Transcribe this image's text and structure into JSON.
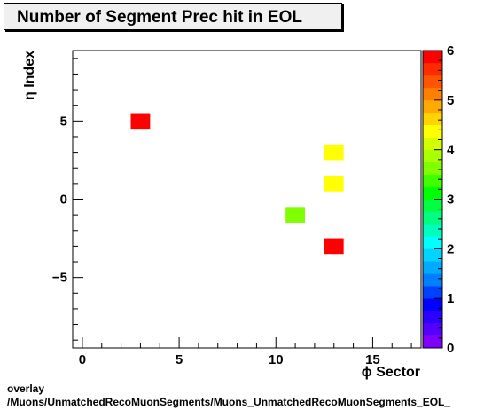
{
  "title": "Number of Segment Prec hit in EOL",
  "footer": {
    "line1": "overlay",
    "line2": "/Muons/UnmatchedRecoMuonSegments/Muons_UnmatchedRecoMuonSegments_EOL_"
  },
  "chart_data": {
    "type": "heatmap",
    "title": "Number of Segment Prec hit in EOL",
    "xlabel": "ϕ Sector",
    "ylabel": "η Index",
    "xlim": [
      -0.5,
      17.5
    ],
    "ylim": [
      -9.5,
      9.5
    ],
    "xticks": [
      0,
      5,
      10,
      15
    ],
    "yticks": [
      -5,
      0,
      5
    ],
    "zlim": [
      0,
      6
    ],
    "zticks": [
      0,
      1,
      2,
      3,
      4,
      5,
      6
    ],
    "cells": [
      {
        "x": 3,
        "y": 5,
        "z": 6
      },
      {
        "x": 13,
        "y": 3,
        "z": 4.3
      },
      {
        "x": 13,
        "y": 1,
        "z": 4.3
      },
      {
        "x": 11,
        "y": -1,
        "z": 3.5
      },
      {
        "x": 13,
        "y": -3,
        "z": 6
      }
    ],
    "palette": [
      "#7f00ff",
      "#5500ff",
      "#2b00ff",
      "#0000ff",
      "#0040ff",
      "#0080ff",
      "#00aaff",
      "#00d4ff",
      "#00ffff",
      "#00ffbf",
      "#00ff80",
      "#00ff40",
      "#00ff00",
      "#40ff00",
      "#80ff00",
      "#aaff00",
      "#d4ff00",
      "#ffff00",
      "#ffd400",
      "#ffaa00",
      "#ff8000",
      "#ff5500",
      "#ff2b00",
      "#ff0000"
    ]
  }
}
